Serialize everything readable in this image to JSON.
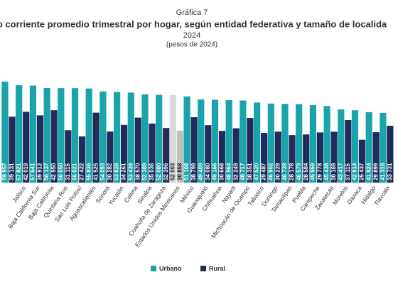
{
  "chart_data": {
    "type": "bar",
    "label": "Gráfica 7",
    "title": "o corriente promedio trimestral por hogar, según entidad federativa y tamaño de localida",
    "subtitle": "2024",
    "unit_note": "(pesos de 2024)",
    "categories": [
      null,
      "Jalisco",
      "Baja California Sur",
      "Baja California",
      "Quintana Roo",
      "San Luis Potosí",
      "Aguascalientes",
      "Sonora",
      "Yucatán",
      "Colima",
      "Sinaloa",
      "Coahuila de Zaragoza",
      "Estados Unidos Mexicanos",
      "México",
      "Guanajuato",
      "Chihuahua",
      "Nayarit",
      "Michoacán de Ocampo",
      "Tabasco",
      "Durango",
      "Tamaulipas",
      "Puebla",
      "Campeche",
      "Zacatecas",
      "Morelos",
      "Oaxaca",
      "Hidalgo",
      "Tlaxcala"
    ],
    "series": [
      {
        "name": "Urbano",
        "color": "#1ba3ab",
        "values": [
          59957,
          57821,
          57541,
          56137,
          56050,
          56021,
          55836,
          54093,
          53828,
          53439,
          52389,
          52080,
          52003,
          51168,
          49409,
          49166,
          48964,
          48717,
          47520,
          46902,
          46739,
          46579,
          45959,
          45438,
          43417,
          42914,
          41824,
          41318
        ],
        "value_labels": [
          "59 957",
          "57 821",
          "57 541",
          "56 137",
          "56 050",
          "56 021",
          "55 836",
          "54 093",
          "53 828",
          "53 439",
          "52 389",
          "52 080",
          "52 003",
          "51 168",
          "49 409",
          "49 166",
          "48 964",
          "48 717",
          "47 520",
          "46 902",
          "46 739",
          "46 579",
          "45 959",
          "45 438",
          "43 417",
          "42 914",
          "41 824",
          "41 318"
        ]
      },
      {
        "name": "Rural",
        "color": "#1f2d5c",
        "values": [
          39131,
          42019,
          39912,
          42950,
          31115,
          27422,
          41525,
          30282,
          34261,
          38570,
          35036,
          32396,
          30858,
          38799,
          34080,
          30668,
          32249,
          38351,
          29487,
          30229,
          28178,
          28584,
          29778,
          30169,
          37115,
          25437,
          29899,
          33731
        ],
        "value_labels": [
          "39 131",
          "42 019",
          "39 912",
          "42 950",
          "31 115",
          "27 422",
          "41 525",
          "30 282",
          "34 261",
          "38 570",
          "35 036",
          "32 396",
          "30 858",
          "38 799",
          "34 080",
          "30 668",
          "32 249",
          "38 351",
          "29 487",
          "30 229",
          "28 178",
          "28 584",
          "29 778",
          "30 169",
          "37 115",
          "25 437",
          "29 899",
          "33 731"
        ]
      }
    ],
    "highlight_category": "Estados Unidos Mexicanos",
    "highlight_colors": [
      "#d9d9d9",
      "#bfbfbf"
    ],
    "ylim": [
      0,
      62000
    ],
    "legend": "bottom"
  }
}
